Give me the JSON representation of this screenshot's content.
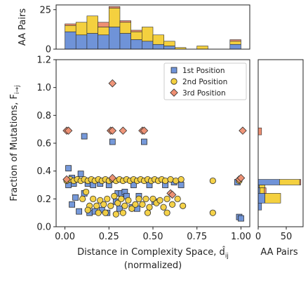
{
  "chart_data": {
    "type": "scatter",
    "main": {
      "xlabel": "Distance in Complexity Space, d̂",
      "xlabel_sub": "ij",
      "xlabel_line2": "(normalized)",
      "ylabel": "Fraction of Mutations, F",
      "ylabel_sub": "i→j",
      "xlim": [
        -0.05,
        1.05
      ],
      "ylim": [
        0.0,
        1.2
      ],
      "xticks": [
        0.0,
        0.25,
        0.5,
        0.75,
        1.0
      ],
      "xtick_labels": [
        "0.00",
        "0.25",
        "0.50",
        "0.75",
        "1.00"
      ],
      "yticks": [
        0.0,
        0.2,
        0.4,
        0.6,
        0.8,
        1.0,
        1.2
      ],
      "ytick_labels": [
        "0.0",
        "0.2",
        "0.4",
        "0.6",
        "0.8",
        "1.0",
        "1.2"
      ],
      "legend_position": "top-right",
      "grid": false,
      "series": [
        {
          "name": "1st Position",
          "marker": "square",
          "color": "#6f93d8",
          "points": [
            [
              0.02,
              0.42
            ],
            [
              0.04,
              0.35
            ],
            [
              0.05,
              0.31
            ],
            [
              0.09,
              0.38
            ],
            [
              0.11,
              0.65
            ],
            [
              0.06,
              0.21
            ],
            [
              0.04,
              0.16
            ],
            [
              0.08,
              0.11
            ],
            [
              0.14,
              0.1
            ],
            [
              0.17,
              0.11
            ],
            [
              0.11,
              0.24
            ],
            [
              0.13,
              0.31
            ],
            [
              0.2,
              0.31
            ],
            [
              0.25,
              0.3
            ],
            [
              0.27,
              0.61
            ],
            [
              0.3,
              0.24
            ],
            [
              0.32,
              0.24
            ],
            [
              0.34,
              0.25
            ],
            [
              0.24,
              0.1
            ],
            [
              0.29,
              0.18
            ],
            [
              0.31,
              0.13
            ],
            [
              0.35,
              0.22
            ],
            [
              0.38,
              0.14
            ],
            [
              0.41,
              0.13
            ],
            [
              0.42,
              0.22
            ],
            [
              0.45,
              0.61
            ],
            [
              0.51,
              0.18
            ],
            [
              0.57,
              0.3
            ],
            [
              0.62,
              0.32
            ],
            [
              0.66,
              0.3
            ],
            [
              0.98,
              0.32
            ],
            [
              0.99,
              0.07
            ],
            [
              1.0,
              0.06
            ],
            [
              0.02,
              0.3
            ],
            [
              0.16,
              0.3
            ],
            [
              0.39,
              0.3
            ],
            [
              0.48,
              0.3
            ],
            [
              0.21,
              0.12
            ]
          ]
        },
        {
          "name": "2nd Position",
          "marker": "circle",
          "color": "#f4d03f",
          "points": [
            [
              0.01,
              0.33
            ],
            [
              0.03,
              0.34
            ],
            [
              0.05,
              0.33
            ],
            [
              0.07,
              0.34
            ],
            [
              0.09,
              0.33
            ],
            [
              0.11,
              0.34
            ],
            [
              0.13,
              0.33
            ],
            [
              0.15,
              0.34
            ],
            [
              0.17,
              0.33
            ],
            [
              0.19,
              0.34
            ],
            [
              0.21,
              0.33
            ],
            [
              0.23,
              0.34
            ],
            [
              0.25,
              0.33
            ],
            [
              0.27,
              0.34
            ],
            [
              0.29,
              0.33
            ],
            [
              0.31,
              0.34
            ],
            [
              0.33,
              0.33
            ],
            [
              0.35,
              0.34
            ],
            [
              0.37,
              0.33
            ],
            [
              0.39,
              0.34
            ],
            [
              0.41,
              0.33
            ],
            [
              0.43,
              0.34
            ],
            [
              0.45,
              0.33
            ],
            [
              0.47,
              0.34
            ],
            [
              0.49,
              0.33
            ],
            [
              0.51,
              0.34
            ],
            [
              0.53,
              0.33
            ],
            [
              0.55,
              0.34
            ],
            [
              0.57,
              0.33
            ],
            [
              0.6,
              0.34
            ],
            [
              0.63,
              0.33
            ],
            [
              0.66,
              0.34
            ],
            [
              0.1,
              0.2
            ],
            [
              0.12,
              0.25
            ],
            [
              0.14,
              0.15
            ],
            [
              0.16,
              0.2
            ],
            [
              0.18,
              0.15
            ],
            [
              0.2,
              0.19
            ],
            [
              0.22,
              0.16
            ],
            [
              0.24,
              0.2
            ],
            [
              0.26,
              0.15
            ],
            [
              0.28,
              0.22
            ],
            [
              0.3,
              0.17
            ],
            [
              0.32,
              0.2
            ],
            [
              0.34,
              0.15
            ],
            [
              0.36,
              0.19
            ],
            [
              0.38,
              0.13
            ],
            [
              0.4,
              0.16
            ],
            [
              0.42,
              0.2
            ],
            [
              0.44,
              0.16
            ],
            [
              0.46,
              0.2
            ],
            [
              0.48,
              0.14
            ],
            [
              0.5,
              0.2
            ],
            [
              0.52,
              0.17
            ],
            [
              0.54,
              0.19
            ],
            [
              0.56,
              0.14
            ],
            [
              0.58,
              0.2
            ],
            [
              0.61,
              0.16
            ],
            [
              0.64,
              0.2
            ],
            [
              0.67,
              0.15
            ],
            [
              0.23,
              0.1
            ],
            [
              0.29,
              0.09
            ],
            [
              0.33,
              0.1
            ],
            [
              0.47,
              0.1
            ],
            [
              0.58,
              0.1
            ],
            [
              0.13,
              0.12
            ],
            [
              0.19,
              0.1
            ],
            [
              0.84,
              0.33
            ],
            [
              0.84,
              0.1
            ],
            [
              0.99,
              0.33
            ]
          ]
        },
        {
          "name": "3rd Position",
          "marker": "diamond",
          "color": "#ee8f72",
          "points": [
            [
              0.01,
              0.69
            ],
            [
              0.02,
              0.69
            ],
            [
              0.26,
              0.69
            ],
            [
              0.27,
              0.69
            ],
            [
              0.33,
              0.69
            ],
            [
              0.44,
              0.69
            ],
            [
              0.45,
              0.69
            ],
            [
              1.01,
              0.69
            ],
            [
              0.27,
              1.03
            ],
            [
              0.27,
              0.35
            ],
            [
              0.01,
              0.34
            ],
            [
              0.6,
              0.24
            ],
            [
              0.61,
              0.23
            ],
            [
              0.99,
              0.34
            ],
            [
              1.0,
              0.35
            ]
          ]
        }
      ]
    },
    "top_histogram": {
      "type": "bar",
      "ylabel": "AA Pairs",
      "ylim": [
        0,
        28
      ],
      "yticks": [
        0,
        25
      ],
      "stacked": true,
      "bin_edges": [
        0.0,
        0.0625,
        0.125,
        0.1875,
        0.25,
        0.3125,
        0.375,
        0.4375,
        0.5,
        0.5625,
        0.625,
        0.6875,
        0.75,
        0.8125,
        0.875,
        0.9375,
        1.0
      ],
      "series": [
        {
          "name": "1st Position",
          "color": "#6f93d8",
          "values": [
            11,
            9,
            10,
            9,
            14,
            10,
            6,
            5,
            3,
            2,
            0,
            0,
            0,
            0,
            0,
            3
          ]
        },
        {
          "name": "2nd Position",
          "color": "#f4d03f",
          "values": [
            4,
            8,
            11,
            5,
            12,
            7,
            5,
            9,
            6,
            3,
            1,
            0,
            2,
            0,
            0,
            2
          ]
        },
        {
          "name": "3rd Position",
          "color": "#ee8f72",
          "values": [
            1,
            0,
            0,
            3,
            1,
            1,
            1,
            0,
            0,
            0,
            0,
            0,
            0,
            0,
            0,
            1
          ]
        }
      ]
    },
    "right_histogram": {
      "type": "bar",
      "orientation": "horizontal",
      "xlabel": "AA Pairs",
      "xlim": [
        0,
        80
      ],
      "xticks": [
        0,
        50
      ],
      "stacked": true,
      "bins": [
        {
          "y_range": [
            0.05,
            0.12
          ],
          "values": [
            0,
            0,
            0
          ]
        },
        {
          "y_range": [
            0.12,
            0.17
          ],
          "values": [
            6,
            0,
            0
          ]
        },
        {
          "y_range": [
            0.17,
            0.24
          ],
          "values": [
            12,
            28,
            0
          ]
        },
        {
          "y_range": [
            0.24,
            0.28
          ],
          "values": [
            3,
            8,
            3
          ]
        },
        {
          "y_range": [
            0.28,
            0.3
          ],
          "values": [
            2,
            10,
            0
          ]
        },
        {
          "y_range": [
            0.3,
            0.34
          ],
          "values": [
            38,
            36,
            2
          ]
        },
        {
          "y_range": [
            0.66,
            0.71
          ],
          "values": [
            0,
            0,
            6
          ]
        }
      ]
    }
  }
}
